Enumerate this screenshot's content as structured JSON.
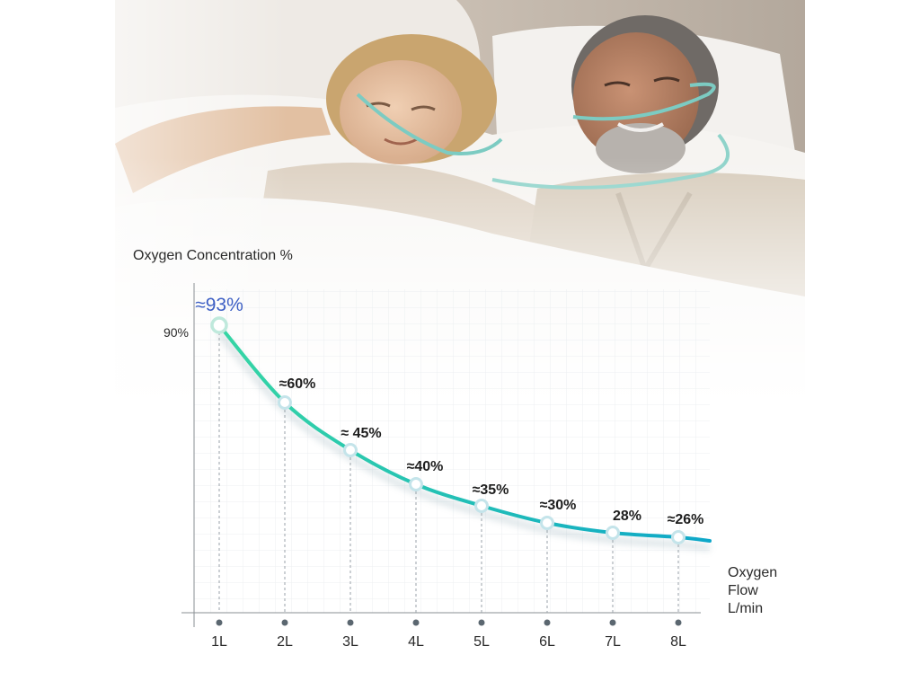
{
  "chart_data": {
    "type": "line",
    "ylabel": "Oxygen Concentration %",
    "xlabel_lines": [
      "Oxygen",
      "Flow",
      "L/min"
    ],
    "y_ticks": [
      {
        "value": 90,
        "label": "90%"
      }
    ],
    "ylim": [
      0,
      100
    ],
    "categories": [
      "1L",
      "2L",
      "3L",
      "4L",
      "5L",
      "6L",
      "7L",
      "8L"
    ],
    "values": [
      93,
      60,
      45,
      40,
      35,
      30,
      28,
      26
    ],
    "data_labels": [
      "≈93%",
      "≈60%",
      "≈ 45%",
      "≈40%",
      "≈35%",
      "≈30%",
      "28%",
      "≈26%"
    ],
    "grid": true,
    "line_colors": {
      "start": "#36d6a4",
      "end": "#0ea7c9"
    },
    "highlight_label_color": "#3d5fc4"
  },
  "photo": {
    "description_icon": "photo-of-couple-sleeping-with-nasal-cannulas"
  }
}
